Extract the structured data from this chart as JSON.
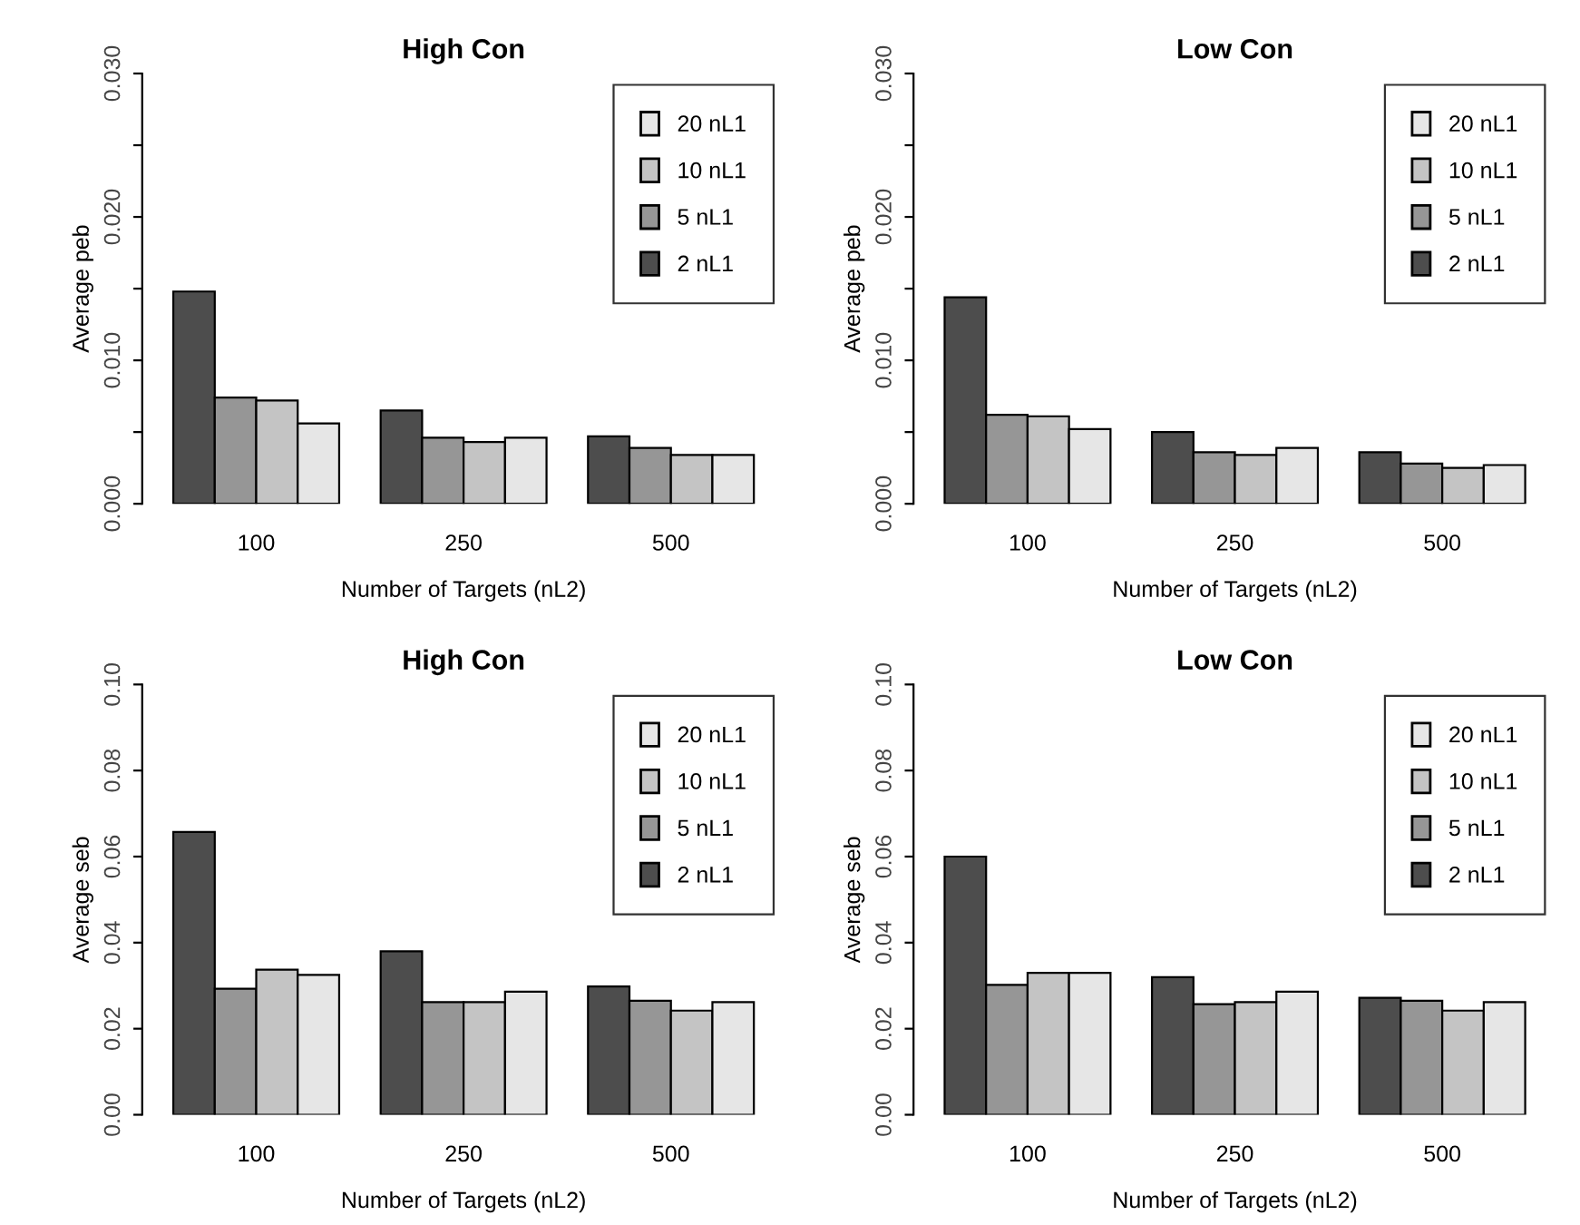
{
  "chart_data": [
    {
      "type": "bar",
      "title": "High Con",
      "xlabel": "Number of Targets (nL2)",
      "ylabel": "Average peb",
      "categories": [
        "100",
        "250",
        "500"
      ],
      "ylim": [
        0,
        0.03
      ],
      "yticks": [
        {
          "value": 0,
          "label": "0.000"
        },
        {
          "value": 0.005,
          "label": null
        },
        {
          "value": 0.01,
          "label": "0.010"
        },
        {
          "value": 0.015,
          "label": null
        },
        {
          "value": 0.02,
          "label": "0.020"
        },
        {
          "value": 0.025,
          "label": null
        },
        {
          "value": 0.03,
          "label": "0.030"
        }
      ],
      "legend": "top right",
      "grid": false,
      "series": [
        {
          "name": "2 nL1",
          "color": "#4d4d4d",
          "values": [
            0.0148,
            0.0065,
            0.0047
          ]
        },
        {
          "name": "5 nL1",
          "color": "#969696",
          "values": [
            0.0074,
            0.0046,
            0.0039
          ]
        },
        {
          "name": "10 nL1",
          "color": "#c4c4c4",
          "values": [
            0.0072,
            0.0043,
            0.0034
          ]
        },
        {
          "name": "20 nL1",
          "color": "#e6e6e6",
          "values": [
            0.0056,
            0.0046,
            0.0034
          ]
        }
      ]
    },
    {
      "type": "bar",
      "title": "Low Con",
      "xlabel": "Number of Targets (nL2)",
      "ylabel": "Average peb",
      "categories": [
        "100",
        "250",
        "500"
      ],
      "ylim": [
        0,
        0.03
      ],
      "yticks": [
        {
          "value": 0,
          "label": "0.000"
        },
        {
          "value": 0.005,
          "label": null
        },
        {
          "value": 0.01,
          "label": "0.010"
        },
        {
          "value": 0.015,
          "label": null
        },
        {
          "value": 0.02,
          "label": "0.020"
        },
        {
          "value": 0.025,
          "label": null
        },
        {
          "value": 0.03,
          "label": "0.030"
        }
      ],
      "legend": "top right",
      "grid": false,
      "series": [
        {
          "name": "2 nL1",
          "color": "#4d4d4d",
          "values": [
            0.0144,
            0.005,
            0.0036
          ]
        },
        {
          "name": "5 nL1",
          "color": "#969696",
          "values": [
            0.0062,
            0.0036,
            0.0028
          ]
        },
        {
          "name": "10 nL1",
          "color": "#c4c4c4",
          "values": [
            0.0061,
            0.0034,
            0.0025
          ]
        },
        {
          "name": "20 nL1",
          "color": "#e6e6e6",
          "values": [
            0.0052,
            0.0039,
            0.0027
          ]
        }
      ]
    },
    {
      "type": "bar",
      "title": "High Con",
      "xlabel": "Number of Targets (nL2)",
      "ylabel": "Average seb",
      "categories": [
        "100",
        "250",
        "500"
      ],
      "ylim": [
        0,
        0.1
      ],
      "yticks": [
        {
          "value": 0,
          "label": "0.00"
        },
        {
          "value": 0.02,
          "label": "0.02"
        },
        {
          "value": 0.04,
          "label": "0.04"
        },
        {
          "value": 0.06,
          "label": "0.06"
        },
        {
          "value": 0.08,
          "label": "0.08"
        },
        {
          "value": 0.1,
          "label": "0.10"
        }
      ],
      "legend": "top right",
      "grid": false,
      "series": [
        {
          "name": "2 nL1",
          "color": "#4d4d4d",
          "values": [
            0.0657,
            0.038,
            0.0298
          ]
        },
        {
          "name": "5 nL1",
          "color": "#969696",
          "values": [
            0.0293,
            0.0262,
            0.0265
          ]
        },
        {
          "name": "10 nL1",
          "color": "#c4c4c4",
          "values": [
            0.0337,
            0.0262,
            0.0242
          ]
        },
        {
          "name": "20 nL1",
          "color": "#e6e6e6",
          "values": [
            0.0325,
            0.0286,
            0.0262
          ]
        }
      ]
    },
    {
      "type": "bar",
      "title": "Low Con",
      "xlabel": "Number of Targets (nL2)",
      "ylabel": "Average seb",
      "categories": [
        "100",
        "250",
        "500"
      ],
      "ylim": [
        0,
        0.1
      ],
      "yticks": [
        {
          "value": 0,
          "label": "0.00"
        },
        {
          "value": 0.02,
          "label": "0.02"
        },
        {
          "value": 0.04,
          "label": "0.04"
        },
        {
          "value": 0.06,
          "label": "0.06"
        },
        {
          "value": 0.08,
          "label": "0.08"
        },
        {
          "value": 0.1,
          "label": "0.10"
        }
      ],
      "legend": "top right",
      "grid": false,
      "series": [
        {
          "name": "2 nL1",
          "color": "#4d4d4d",
          "values": [
            0.06,
            0.032,
            0.0272
          ]
        },
        {
          "name": "5 nL1",
          "color": "#969696",
          "values": [
            0.0302,
            0.0257,
            0.0265
          ]
        },
        {
          "name": "10 nL1",
          "color": "#c4c4c4",
          "values": [
            0.033,
            0.0262,
            0.0242
          ]
        },
        {
          "name": "20 nL1",
          "color": "#e6e6e6",
          "values": [
            0.033,
            0.0286,
            0.0262
          ]
        }
      ]
    }
  ]
}
